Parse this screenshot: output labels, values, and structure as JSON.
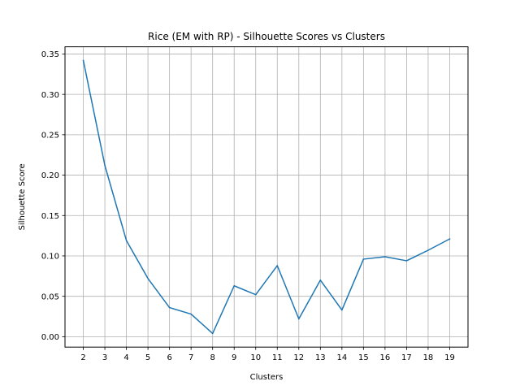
{
  "chart_data": {
    "type": "line",
    "title": "Rice (EM with RP) - Silhouette Scores vs Clusters",
    "xlabel": "Clusters",
    "ylabel": "Silhouette Score",
    "x": [
      2,
      3,
      4,
      5,
      6,
      7,
      8,
      9,
      10,
      11,
      12,
      13,
      14,
      15,
      16,
      17,
      18,
      19
    ],
    "series": [
      {
        "name": "Silhouette Score",
        "color": "#1f77b4",
        "values": [
          0.342,
          0.212,
          0.119,
          0.072,
          0.036,
          0.028,
          0.004,
          0.063,
          0.052,
          0.088,
          0.022,
          0.07,
          0.033,
          0.096,
          0.099,
          0.094,
          0.107,
          0.121
        ]
      }
    ],
    "xticks": [
      "2",
      "3",
      "4",
      "5",
      "6",
      "7",
      "8",
      "9",
      "10",
      "11",
      "12",
      "13",
      "14",
      "15",
      "16",
      "17",
      "18",
      "19"
    ],
    "yticks": [
      "0.00",
      "0.05",
      "0.10",
      "0.15",
      "0.20",
      "0.25",
      "0.30",
      "0.35"
    ],
    "xlim": [
      1.15,
      19.85
    ],
    "ylim": [
      -0.0129,
      0.3589
    ],
    "grid": true
  }
}
